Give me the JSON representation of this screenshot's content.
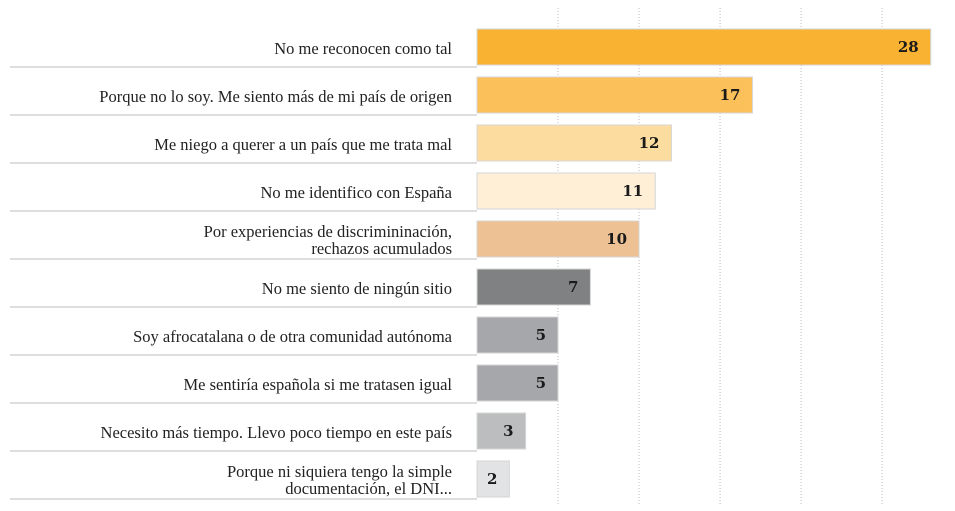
{
  "chart_data": {
    "type": "bar",
    "orientation": "horizontal",
    "categories": [
      "No me reconocen como tal",
      "Porque no lo soy. Me siento más de mi país de origen",
      "Me niego a querer a un país que me trata mal",
      "No me identifico con España",
      "Por experiencias de discrimininación,\nrechazos acumulados",
      "No me siento de ningún sitio",
      "Soy afrocatalana o de otra comunidad autónoma",
      "Me sentiría española si me tratasen igual",
      "Necesito más tiempo. Llevo poco tiempo en este país",
      "Porque ni siquiera tengo la simple\ndocumentación, el DNI..."
    ],
    "values": [
      28,
      17,
      12,
      11,
      10,
      7,
      5,
      5,
      3,
      2
    ],
    "colors": [
      "#f9b232",
      "#fbc05a",
      "#fddc9f",
      "#feefd6",
      "#eec195",
      "#7f8183",
      "#a6a7aa",
      "#a6a7aa",
      "#bcbdbf",
      "#e2e3e4"
    ],
    "xlim": [
      0,
      29.5
    ],
    "xticks": [
      5,
      10,
      15,
      20,
      25
    ],
    "grid": true
  }
}
